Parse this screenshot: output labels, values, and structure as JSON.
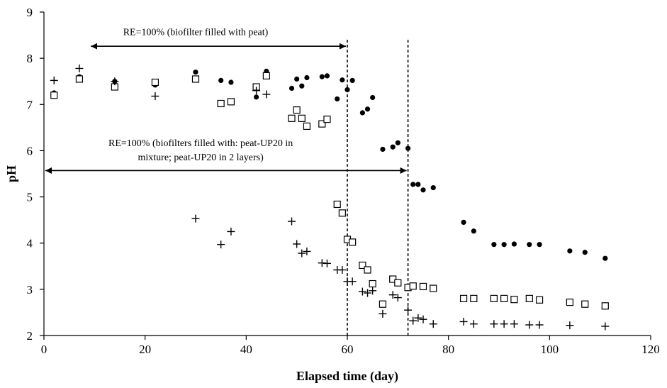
{
  "chart_data": {
    "type": "scatter",
    "title": "",
    "xlabel": "Elapsed time (day)",
    "ylabel": "pH",
    "xlim": [
      0,
      120
    ],
    "ylim": [
      2,
      9
    ],
    "xticks": [
      "0",
      "20",
      "40",
      "60",
      "80",
      "100",
      "120"
    ],
    "yticks": [
      "2",
      "3",
      "4",
      "5",
      "6",
      "7",
      "8",
      "9"
    ],
    "grid": false,
    "legend": "none",
    "series": [
      {
        "marker": "filled-circle",
        "color": "#000000",
        "points": [
          [
            2,
            7.25
          ],
          [
            7,
            7.6
          ],
          [
            14,
            7.5
          ],
          [
            22,
            7.42
          ],
          [
            30,
            7.7
          ],
          [
            35,
            7.52
          ],
          [
            37,
            7.48
          ],
          [
            42,
            7.16
          ],
          [
            44,
            7.72
          ],
          [
            49,
            7.35
          ],
          [
            50,
            7.55
          ],
          [
            51,
            7.4
          ],
          [
            52,
            7.58
          ],
          [
            55,
            7.6
          ],
          [
            56,
            7.62
          ],
          [
            58,
            7.12
          ],
          [
            59,
            7.53
          ],
          [
            60,
            7.32
          ],
          [
            61,
            7.52
          ],
          [
            63,
            6.82
          ],
          [
            64,
            6.9
          ],
          [
            65,
            7.15
          ],
          [
            67,
            6.03
          ],
          [
            69,
            6.08
          ],
          [
            70,
            6.17
          ],
          [
            72,
            6.05
          ],
          [
            73,
            5.27
          ],
          [
            74,
            5.27
          ],
          [
            75,
            5.15
          ],
          [
            77,
            5.2
          ],
          [
            83,
            4.45
          ],
          [
            85,
            4.26
          ],
          [
            89,
            3.97
          ],
          [
            91,
            3.97
          ],
          [
            93,
            3.98
          ],
          [
            96,
            3.97
          ],
          [
            98,
            3.97
          ],
          [
            104,
            3.83
          ],
          [
            107,
            3.8
          ],
          [
            111,
            3.67
          ]
        ]
      },
      {
        "marker": "open-square",
        "color": "#000000",
        "points": [
          [
            2,
            7.2
          ],
          [
            7,
            7.55
          ],
          [
            14,
            7.38
          ],
          [
            22,
            7.48
          ],
          [
            30,
            7.55
          ],
          [
            35,
            7.02
          ],
          [
            37,
            7.06
          ],
          [
            42,
            7.38
          ],
          [
            44,
            7.62
          ],
          [
            49,
            6.7
          ],
          [
            50,
            6.88
          ],
          [
            51,
            6.7
          ],
          [
            52,
            6.53
          ],
          [
            55,
            6.58
          ],
          [
            56,
            6.68
          ],
          [
            58,
            4.84
          ],
          [
            59,
            4.65
          ],
          [
            60,
            4.08
          ],
          [
            61,
            4.02
          ],
          [
            63,
            3.52
          ],
          [
            64,
            3.42
          ],
          [
            65,
            3.12
          ],
          [
            67,
            2.68
          ],
          [
            69,
            3.22
          ],
          [
            70,
            3.14
          ],
          [
            72,
            3.04
          ],
          [
            73,
            3.07
          ],
          [
            75,
            3.06
          ],
          [
            77,
            3.02
          ],
          [
            83,
            2.8
          ],
          [
            85,
            2.8
          ],
          [
            89,
            2.8
          ],
          [
            91,
            2.8
          ],
          [
            93,
            2.78
          ],
          [
            96,
            2.8
          ],
          [
            98,
            2.77
          ],
          [
            104,
            2.72
          ],
          [
            107,
            2.68
          ],
          [
            111,
            2.64
          ]
        ]
      },
      {
        "marker": "plus",
        "color": "#000000",
        "points": [
          [
            2,
            7.52
          ],
          [
            7,
            7.78
          ],
          [
            14,
            7.5
          ],
          [
            22,
            7.18
          ],
          [
            30,
            4.53
          ],
          [
            35,
            3.97
          ],
          [
            37,
            4.25
          ],
          [
            42,
            7.3
          ],
          [
            44,
            7.22
          ],
          [
            49,
            4.47
          ],
          [
            50,
            3.98
          ],
          [
            51,
            3.78
          ],
          [
            52,
            3.82
          ],
          [
            55,
            3.57
          ],
          [
            56,
            3.56
          ],
          [
            58,
            3.42
          ],
          [
            59,
            3.42
          ],
          [
            60,
            3.17
          ],
          [
            61,
            3.17
          ],
          [
            63,
            2.95
          ],
          [
            64,
            2.92
          ],
          [
            65,
            2.97
          ],
          [
            67,
            2.47
          ],
          [
            69,
            2.88
          ],
          [
            70,
            2.82
          ],
          [
            72,
            2.55
          ],
          [
            73,
            2.32
          ],
          [
            74,
            2.38
          ],
          [
            75,
            2.35
          ],
          [
            77,
            2.25
          ],
          [
            83,
            2.3
          ],
          [
            85,
            2.25
          ],
          [
            89,
            2.25
          ],
          [
            91,
            2.25
          ],
          [
            93,
            2.25
          ],
          [
            96,
            2.23
          ],
          [
            98,
            2.23
          ],
          [
            104,
            2.22
          ],
          [
            111,
            2.2
          ]
        ]
      }
    ],
    "vlines": [
      {
        "x": 60,
        "style": "dashed"
      },
      {
        "x": 72,
        "style": "dashed"
      }
    ],
    "annotations": [
      {
        "lines": [
          "RE=100% (biofilter filled with peat)"
        ],
        "arrow_from": 9,
        "arrow_to": 60,
        "arrow_y": 8.26,
        "text_x": 30,
        "text_y": 8.5
      },
      {
        "lines": [
          "RE=100% (biofilters filled with: peat-UP20 in",
          "mixture; peat-UP20 in 2 layers)"
        ],
        "arrow_from": 0,
        "arrow_to": 72,
        "arrow_y": 5.57,
        "text_x": 31,
        "text_y": 6.1
      }
    ]
  }
}
